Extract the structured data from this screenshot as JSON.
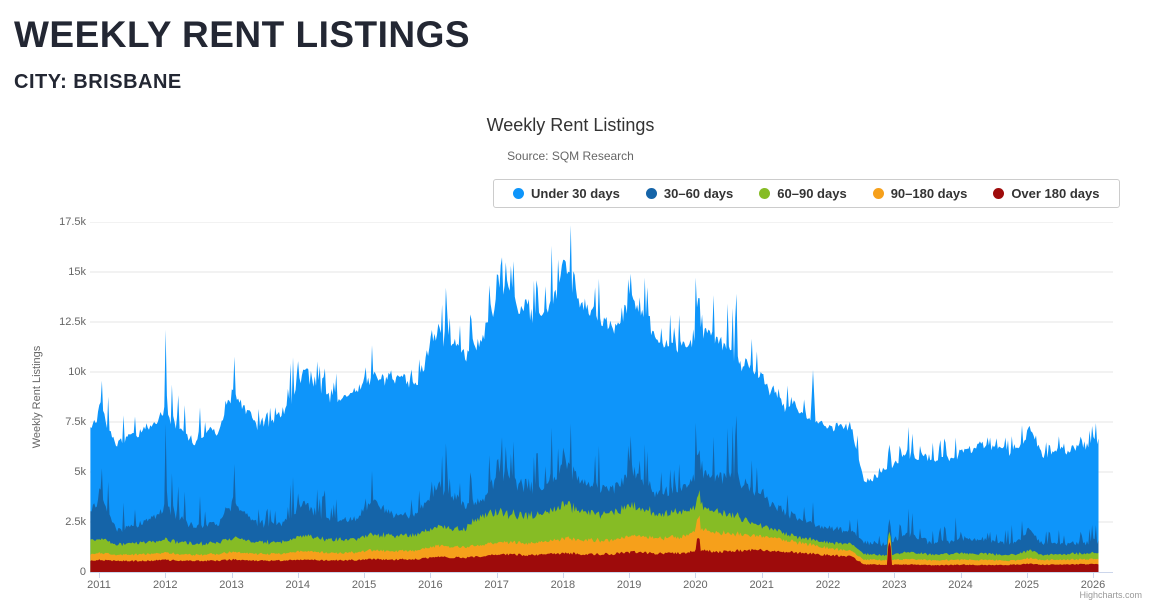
{
  "header": {
    "title": "WEEKLY RENT LISTINGS",
    "city_line": "CITY: BRISBANE"
  },
  "chart": {
    "title": "Weekly Rent Listings",
    "subtitle": "Source: SQM Research",
    "y_axis": {
      "title": "Weekly Rent Listings",
      "tick_labels": [
        "0",
        "2.5k",
        "5k",
        "7.5k",
        "10k",
        "12.5k",
        "15k",
        "17.5k"
      ]
    },
    "x_axis": {
      "tick_labels": [
        "2011",
        "2012",
        "2013",
        "2014",
        "2015",
        "2016",
        "2017",
        "2018",
        "2019",
        "2020",
        "2021",
        "2022",
        "2023",
        "2024",
        "2025",
        "2026"
      ]
    },
    "credits": "Highcharts.com"
  },
  "chart_data": {
    "type": "area",
    "stacking": "normal",
    "title": "Weekly Rent Listings",
    "subtitle": "Source: SQM Research",
    "ylabel": "Weekly Rent Listings",
    "ylim_thousands": [
      0,
      17.5
    ],
    "x_range_years": [
      2011,
      2026
    ],
    "grid": "horizontal",
    "legend_position": "top-right-boxed",
    "units": "weekly rent listings, values in thousands; anchors are [year, cumulative stack-top] read from the chart",
    "series": [
      {
        "id": "over_180_days",
        "name": "Over 180 days",
        "color": "#9e0b0b",
        "stack_top_anchors": [
          [
            2010.86,
            0.58
          ],
          [
            2011.02,
            0.6
          ],
          [
            2011.25,
            0.55
          ],
          [
            2011.6,
            0.55
          ],
          [
            2012.0,
            0.6
          ],
          [
            2012.4,
            0.55
          ],
          [
            2012.8,
            0.57
          ],
          [
            2013.02,
            0.62
          ],
          [
            2013.4,
            0.57
          ],
          [
            2013.8,
            0.58
          ],
          [
            2014.08,
            0.62
          ],
          [
            2014.5,
            0.58
          ],
          [
            2014.9,
            0.6
          ],
          [
            2015.08,
            0.65
          ],
          [
            2015.45,
            0.62
          ],
          [
            2015.8,
            0.65
          ],
          [
            2016.1,
            0.75
          ],
          [
            2016.5,
            0.72
          ],
          [
            2016.8,
            0.78
          ],
          [
            2017.05,
            0.9
          ],
          [
            2017.4,
            0.85
          ],
          [
            2017.75,
            0.88
          ],
          [
            2018.05,
            0.95
          ],
          [
            2018.4,
            0.88
          ],
          [
            2018.75,
            0.9
          ],
          [
            2019.05,
            1.0
          ],
          [
            2019.4,
            0.92
          ],
          [
            2019.8,
            0.95
          ],
          [
            2020.05,
            1.1
          ],
          [
            2020.35,
            1.0
          ],
          [
            2020.6,
            1.05
          ],
          [
            2020.9,
            1.1
          ],
          [
            2021.2,
            1.05
          ],
          [
            2021.6,
            0.95
          ],
          [
            2022.0,
            0.85
          ],
          [
            2022.35,
            0.78
          ],
          [
            2022.55,
            0.38
          ],
          [
            2022.9,
            0.36
          ],
          [
            2023.2,
            0.38
          ],
          [
            2023.6,
            0.34
          ],
          [
            2024.0,
            0.36
          ],
          [
            2024.35,
            0.35
          ],
          [
            2024.8,
            0.36
          ],
          [
            2025.05,
            0.42
          ],
          [
            2025.25,
            0.36
          ],
          [
            2025.6,
            0.38
          ],
          [
            2026.1,
            0.4
          ]
        ]
      },
      {
        "id": "90_180_days",
        "name": "90–180 days",
        "color": "#f6a01b",
        "stack_top_anchors": [
          [
            2010.86,
            0.9
          ],
          [
            2011.02,
            0.95
          ],
          [
            2011.25,
            0.85
          ],
          [
            2011.6,
            0.9
          ],
          [
            2012.0,
            0.95
          ],
          [
            2012.4,
            0.85
          ],
          [
            2012.8,
            0.9
          ],
          [
            2013.02,
            1.0
          ],
          [
            2013.4,
            0.9
          ],
          [
            2013.8,
            0.95
          ],
          [
            2014.08,
            1.05
          ],
          [
            2014.5,
            0.95
          ],
          [
            2014.9,
            1.0
          ],
          [
            2015.08,
            1.1
          ],
          [
            2015.45,
            1.05
          ],
          [
            2015.8,
            1.1
          ],
          [
            2016.1,
            1.3
          ],
          [
            2016.5,
            1.25
          ],
          [
            2016.8,
            1.35
          ],
          [
            2017.05,
            1.5
          ],
          [
            2017.4,
            1.45
          ],
          [
            2017.75,
            1.5
          ],
          [
            2018.05,
            1.7
          ],
          [
            2018.4,
            1.6
          ],
          [
            2018.75,
            1.6
          ],
          [
            2019.05,
            1.8
          ],
          [
            2019.4,
            1.7
          ],
          [
            2019.8,
            1.75
          ],
          [
            2020.05,
            2.2
          ],
          [
            2020.35,
            1.95
          ],
          [
            2020.6,
            1.9
          ],
          [
            2020.9,
            1.8
          ],
          [
            2021.2,
            1.7
          ],
          [
            2021.6,
            1.45
          ],
          [
            2022.0,
            1.2
          ],
          [
            2022.35,
            1.05
          ],
          [
            2022.55,
            0.62
          ],
          [
            2022.9,
            0.6
          ],
          [
            2023.2,
            0.65
          ],
          [
            2023.6,
            0.58
          ],
          [
            2024.0,
            0.62
          ],
          [
            2024.35,
            0.6
          ],
          [
            2024.8,
            0.58
          ],
          [
            2025.05,
            0.7
          ],
          [
            2025.25,
            0.6
          ],
          [
            2025.6,
            0.62
          ],
          [
            2026.1,
            0.65
          ]
        ]
      },
      {
        "id": "60_90_days",
        "name": "60–90 days",
        "color": "#86bc25",
        "stack_top_anchors": [
          [
            2010.86,
            1.6
          ],
          [
            2011.02,
            1.7
          ],
          [
            2011.25,
            1.4
          ],
          [
            2011.6,
            1.45
          ],
          [
            2012.0,
            1.6
          ],
          [
            2012.4,
            1.4
          ],
          [
            2012.8,
            1.45
          ],
          [
            2013.02,
            1.7
          ],
          [
            2013.4,
            1.5
          ],
          [
            2013.8,
            1.55
          ],
          [
            2014.08,
            1.8
          ],
          [
            2014.5,
            1.6
          ],
          [
            2014.9,
            1.7
          ],
          [
            2015.08,
            1.9
          ],
          [
            2015.45,
            1.8
          ],
          [
            2015.8,
            1.9
          ],
          [
            2016.1,
            2.3
          ],
          [
            2016.5,
            2.1
          ],
          [
            2016.8,
            2.9
          ],
          [
            2017.05,
            3.0
          ],
          [
            2017.4,
            2.8
          ],
          [
            2017.75,
            3.0
          ],
          [
            2018.05,
            3.4
          ],
          [
            2018.4,
            2.9
          ],
          [
            2018.75,
            3.0
          ],
          [
            2019.05,
            3.3
          ],
          [
            2019.4,
            2.9
          ],
          [
            2019.8,
            3.0
          ],
          [
            2020.05,
            3.4
          ],
          [
            2020.35,
            3.0
          ],
          [
            2020.6,
            2.8
          ],
          [
            2020.9,
            2.4
          ],
          [
            2021.2,
            2.1
          ],
          [
            2021.6,
            1.7
          ],
          [
            2022.0,
            1.5
          ],
          [
            2022.35,
            1.4
          ],
          [
            2022.55,
            0.9
          ],
          [
            2022.9,
            0.85
          ],
          [
            2023.2,
            1.0
          ],
          [
            2023.6,
            0.85
          ],
          [
            2024.0,
            0.95
          ],
          [
            2024.35,
            0.9
          ],
          [
            2024.8,
            0.85
          ],
          [
            2025.05,
            1.1
          ],
          [
            2025.25,
            0.85
          ],
          [
            2025.6,
            0.9
          ],
          [
            2026.1,
            0.95
          ]
        ]
      },
      {
        "id": "30_60_days",
        "name": "30–60 days",
        "color": "#1564a8",
        "stack_top_anchors": [
          [
            2010.86,
            3.0
          ],
          [
            2011.02,
            3.9
          ],
          [
            2011.25,
            2.2
          ],
          [
            2011.6,
            2.3
          ],
          [
            2012.0,
            3.3
          ],
          [
            2012.4,
            2.3
          ],
          [
            2012.8,
            2.4
          ],
          [
            2013.02,
            3.5
          ],
          [
            2013.4,
            2.4
          ],
          [
            2013.8,
            2.5
          ],
          [
            2014.08,
            3.4
          ],
          [
            2014.5,
            2.6
          ],
          [
            2014.9,
            2.7
          ],
          [
            2015.08,
            3.6
          ],
          [
            2015.45,
            2.8
          ],
          [
            2015.8,
            2.9
          ],
          [
            2016.1,
            4.3
          ],
          [
            2016.5,
            3.4
          ],
          [
            2016.8,
            3.6
          ],
          [
            2017.05,
            5.2
          ],
          [
            2017.4,
            4.3
          ],
          [
            2017.75,
            4.4
          ],
          [
            2018.05,
            5.5
          ],
          [
            2018.4,
            4.3
          ],
          [
            2018.75,
            4.2
          ],
          [
            2019.05,
            5.0
          ],
          [
            2019.4,
            4.0
          ],
          [
            2019.8,
            4.1
          ],
          [
            2020.05,
            5.2
          ],
          [
            2020.35,
            4.7
          ],
          [
            2020.6,
            4.9
          ],
          [
            2020.9,
            4.0
          ],
          [
            2021.2,
            3.3
          ],
          [
            2021.6,
            2.6
          ],
          [
            2022.0,
            2.2
          ],
          [
            2022.35,
            2.1
          ],
          [
            2022.55,
            1.5
          ],
          [
            2022.9,
            1.4
          ],
          [
            2023.2,
            1.9
          ],
          [
            2023.6,
            1.4
          ],
          [
            2024.0,
            1.7
          ],
          [
            2024.35,
            1.6
          ],
          [
            2024.8,
            1.4
          ],
          [
            2025.05,
            2.0
          ],
          [
            2025.25,
            1.4
          ],
          [
            2025.6,
            1.4
          ],
          [
            2026.1,
            1.5
          ]
        ]
      },
      {
        "id": "under_30_days",
        "name": "Under 30 days",
        "color": "#0e95fa",
        "stack_top_anchors": [
          [
            2010.86,
            7.2
          ],
          [
            2011.02,
            8.3
          ],
          [
            2011.25,
            6.4
          ],
          [
            2011.6,
            6.9
          ],
          [
            2012.0,
            8.0
          ],
          [
            2012.4,
            6.6
          ],
          [
            2012.8,
            7.1
          ],
          [
            2013.02,
            8.9
          ],
          [
            2013.4,
            7.4
          ],
          [
            2013.8,
            7.9
          ],
          [
            2014.08,
            10.1
          ],
          [
            2014.5,
            8.6
          ],
          [
            2014.9,
            9.5
          ],
          [
            2015.08,
            9.8
          ],
          [
            2015.45,
            9.9
          ],
          [
            2015.8,
            9.6
          ],
          [
            2016.1,
            12.3
          ],
          [
            2016.5,
            10.8
          ],
          [
            2016.8,
            11.4
          ],
          [
            2017.05,
            14.6
          ],
          [
            2017.4,
            13.1
          ],
          [
            2017.75,
            13.3
          ],
          [
            2018.05,
            15.2
          ],
          [
            2018.4,
            12.8
          ],
          [
            2018.75,
            12.4
          ],
          [
            2019.05,
            13.9
          ],
          [
            2019.4,
            11.9
          ],
          [
            2019.8,
            11.2
          ],
          [
            2020.05,
            12.6
          ],
          [
            2020.35,
            11.6
          ],
          [
            2020.6,
            10.8
          ],
          [
            2020.9,
            9.7
          ],
          [
            2021.2,
            8.9
          ],
          [
            2021.6,
            8.0
          ],
          [
            2022.0,
            7.3
          ],
          [
            2022.35,
            7.3
          ],
          [
            2022.55,
            4.5
          ],
          [
            2022.9,
            5.0
          ],
          [
            2023.2,
            5.9
          ],
          [
            2023.6,
            5.6
          ],
          [
            2024.0,
            6.0
          ],
          [
            2024.35,
            6.5
          ],
          [
            2024.8,
            6.0
          ],
          [
            2025.05,
            7.2
          ],
          [
            2025.25,
            5.9
          ],
          [
            2025.6,
            6.1
          ],
          [
            2026.1,
            6.3
          ]
        ]
      }
    ],
    "point_spikes": [
      {
        "x": 2020.04,
        "series": "over_180_days",
        "set_stack_top": 1.7
      },
      {
        "x": 2022.92,
        "series": "over_180_days",
        "set_stack_top": 1.5
      },
      {
        "x": 2021.77,
        "series": "under_30_days",
        "add_to_stack_top": 1.3
      }
    ],
    "generation": {
      "seed": 1337,
      "samples_per_year": 52,
      "x_start": 2010.87,
      "x_end": 2026.1,
      "band_noise": {
        "over_180_days": 0.14,
        "90_180_days": 0.22,
        "60_90_days": 0.3,
        "30_60_days": 0.32,
        "under_30_days": 0.06
      },
      "spike_probability_30_60": 0.11,
      "spike_gain_30_60": [
        1.5,
        1.1
      ],
      "january_boost_30_60": 1.3,
      "walk_smooth": 0.75,
      "walk_step": 0.11
    }
  }
}
